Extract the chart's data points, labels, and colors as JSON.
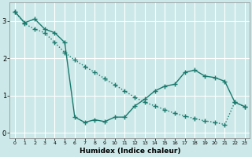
{
  "line1_x": [
    0,
    1,
    2,
    3,
    4,
    5,
    6,
    7,
    8,
    9,
    10,
    11,
    12,
    13,
    14,
    15,
    16,
    17,
    18,
    19,
    20,
    21,
    22,
    23
  ],
  "line1_y": [
    3.25,
    2.95,
    3.05,
    2.78,
    2.68,
    2.42,
    0.42,
    0.28,
    0.35,
    0.3,
    0.42,
    0.42,
    0.72,
    0.9,
    1.12,
    1.25,
    1.3,
    1.62,
    1.68,
    1.52,
    1.48,
    1.38,
    0.82,
    0.7
  ],
  "line2_x": [
    0,
    1,
    2,
    3,
    4,
    5,
    6,
    7,
    8,
    9,
    10,
    11,
    12,
    13,
    14,
    15,
    16,
    17,
    18,
    19,
    20,
    21,
    22,
    23
  ],
  "line2_y": [
    3.25,
    2.92,
    2.78,
    2.68,
    2.42,
    2.15,
    1.95,
    1.78,
    1.62,
    1.45,
    1.28,
    1.12,
    0.95,
    0.82,
    0.72,
    0.62,
    0.52,
    0.45,
    0.38,
    0.32,
    0.28,
    0.22,
    0.82,
    0.7
  ],
  "line_color": "#1a7a6e",
  "bg_color": "#cce8e8",
  "grid_color": "#b8d8d8",
  "xlabel": "Humidex (Indice chaleur)",
  "xlim": [
    -0.5,
    23.5
  ],
  "ylim": [
    -0.15,
    3.5
  ],
  "yticks": [
    0,
    1,
    2,
    3
  ],
  "xticks": [
    0,
    1,
    2,
    3,
    4,
    5,
    6,
    7,
    8,
    9,
    10,
    11,
    12,
    13,
    14,
    15,
    16,
    17,
    18,
    19,
    20,
    21,
    22,
    23
  ],
  "marker": "+",
  "markersize": 4,
  "linewidth": 1.0
}
